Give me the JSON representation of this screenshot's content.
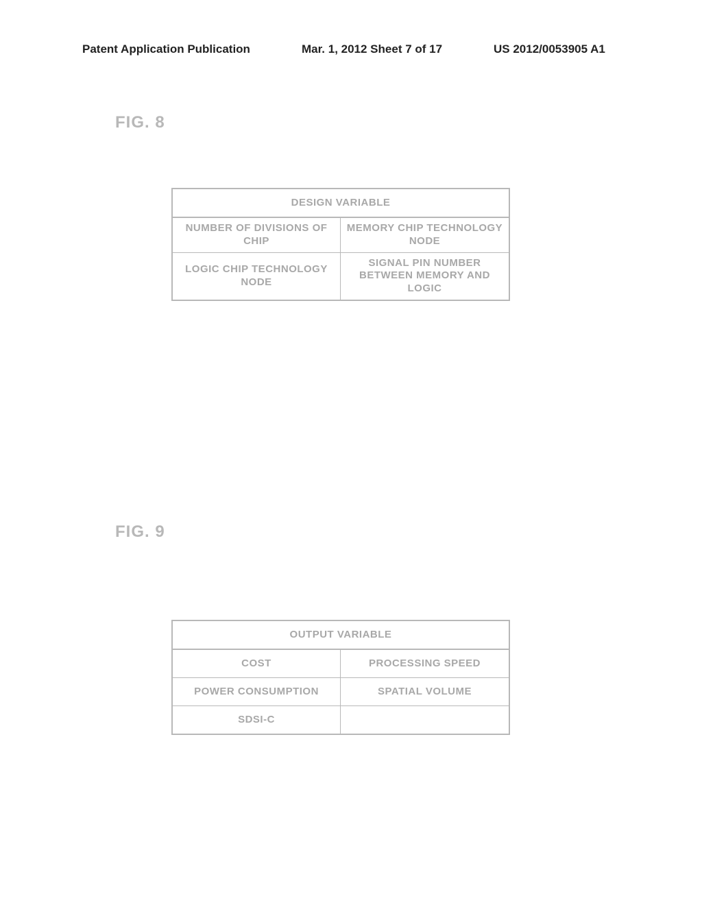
{
  "header": {
    "left": "Patent Application Publication",
    "mid": "Mar. 1, 2012  Sheet 7 of 17",
    "right": "US 2012/0053905 A1"
  },
  "fig8": {
    "label": "FIG. 8",
    "title": "DESIGN VARIABLE",
    "rows": [
      [
        "NUMBER OF DIVISIONS OF CHIP",
        "MEMORY CHIP TECHNOLOGY NODE"
      ],
      [
        "LOGIC CHIP TECHNOLOGY NODE",
        "SIGNAL PIN NUMBER BETWEEN MEMORY AND LOGIC"
      ]
    ]
  },
  "fig9": {
    "label": "FIG. 9",
    "title": "OUTPUT VARIABLE",
    "rows": [
      [
        "COST",
        "PROCESSING SPEED"
      ],
      [
        "POWER CONSUMPTION",
        "SPATIAL VOLUME"
      ],
      [
        "SDSI-C",
        ""
      ]
    ]
  },
  "style": {
    "page_bg": "#ffffff",
    "text_color": "#a8a8a8",
    "border_color": "#b8b8b8",
    "header_color": "#222222",
    "fig_label_color": "#b8b8b8",
    "cell_fontsize": 15,
    "fig_label_fontsize": 24,
    "header_fontsize": 17
  }
}
